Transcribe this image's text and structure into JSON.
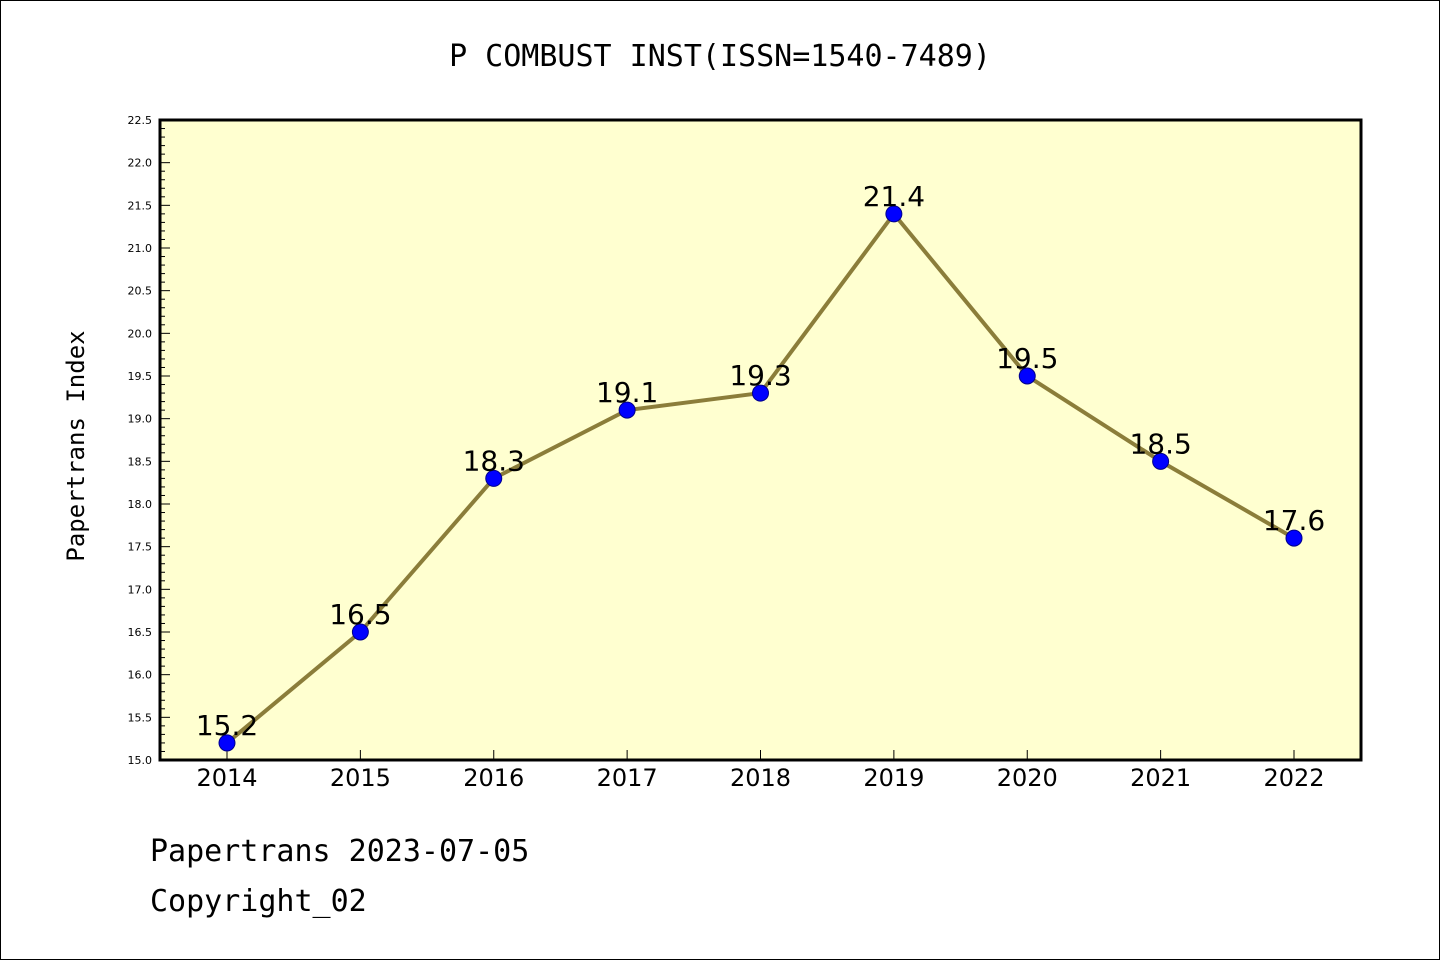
{
  "chart_data": {
    "type": "line",
    "title": "P COMBUST INST(ISSN=1540-7489)",
    "ylabel": "Papertrans Index",
    "xlabel": "",
    "categories": [
      "2014",
      "2015",
      "2016",
      "2017",
      "2018",
      "2019",
      "2020",
      "2021",
      "2022"
    ],
    "values": [
      15.2,
      16.5,
      18.3,
      19.1,
      19.3,
      21.4,
      19.5,
      18.5,
      17.6
    ],
    "data_labels": [
      "15.2",
      "16.5",
      "18.3",
      "19.1",
      "19.3",
      "21.4",
      "19.5",
      "18.5",
      "17.6"
    ],
    "ylim": [
      15.0,
      22.5
    ],
    "yticks": [
      "15.0",
      "15.5",
      "16.0",
      "16.5",
      "17.0",
      "17.5",
      "18.0",
      "18.5",
      "19.0",
      "19.5",
      "20.0",
      "20.5",
      "21.0",
      "21.5",
      "22.0",
      "22.5"
    ],
    "grid": false,
    "colors": {
      "plot_background": "#ffffd0",
      "line": "#8b7d3a",
      "marker": "#0000ff"
    }
  },
  "footer": {
    "line1": "Papertrans 2023-07-05",
    "line2": "Copyright_02"
  }
}
